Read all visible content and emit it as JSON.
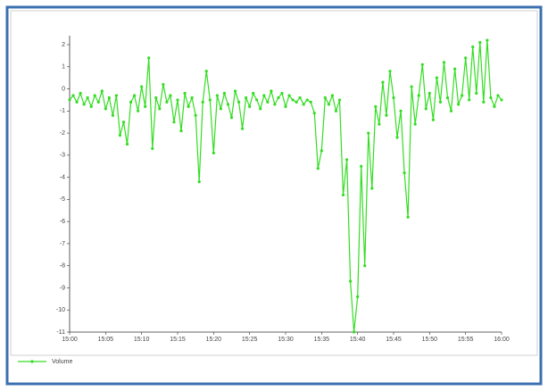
{
  "chart_data": {
    "type": "line",
    "x": [
      0,
      0.5,
      1,
      1.5,
      2,
      2.5,
      3,
      3.5,
      4,
      4.5,
      5,
      5.5,
      6,
      6.5,
      7,
      7.5,
      8,
      8.5,
      9,
      9.5,
      10,
      10.5,
      11,
      11.5,
      12,
      12.5,
      13,
      13.5,
      14,
      14.5,
      15,
      15.5,
      16,
      16.5,
      17,
      17.5,
      18,
      18.5,
      19,
      19.5,
      20,
      20.5,
      21,
      21.5,
      22,
      22.5,
      23,
      23.5,
      24,
      24.5,
      25,
      25.5,
      26,
      26.5,
      27,
      27.5,
      28,
      28.5,
      29,
      29.5,
      30,
      30.5,
      31,
      31.5,
      32,
      32.5,
      33,
      33.5,
      34,
      34.5,
      35,
      35.5,
      36,
      36.5,
      37,
      37.5,
      38,
      38.5,
      39,
      39.5,
      40,
      40.5,
      41,
      41.5,
      42,
      42.5,
      43,
      43.5,
      44,
      44.5,
      45,
      45.5,
      46,
      46.5,
      47,
      47.5,
      48,
      48.5,
      49,
      49.5,
      50,
      50.5,
      51,
      51.5,
      52,
      52.5,
      53,
      53.5,
      54,
      54.5,
      55,
      55.5,
      56,
      56.5,
      57,
      57.5,
      58,
      58.5,
      59,
      59.5,
      60
    ],
    "series": [
      {
        "name": "Volume",
        "color": "#33dd22",
        "values": [
          -0.5,
          -0.3,
          -0.6,
          -0.2,
          -0.7,
          -0.4,
          -0.8,
          -0.3,
          -0.6,
          -0.1,
          -0.9,
          -0.4,
          -1.2,
          -0.3,
          -2.1,
          -1.5,
          -2.5,
          -0.6,
          -0.3,
          -1.0,
          0.1,
          -0.8,
          1.4,
          -2.7,
          -0.4,
          -0.9,
          0.2,
          -0.6,
          -0.3,
          -1.5,
          -0.5,
          -1.9,
          -0.2,
          -0.8,
          -0.4,
          -1.2,
          -4.2,
          -0.6,
          0.8,
          -0.5,
          -2.9,
          -0.3,
          -0.9,
          -0.2,
          -0.7,
          -1.3,
          -0.1,
          -0.6,
          -1.8,
          -0.4,
          -0.8,
          -0.2,
          -0.5,
          -0.9,
          -0.3,
          -0.6,
          -0.1,
          -0.7,
          -0.4,
          -0.2,
          -0.8,
          -0.3,
          -0.5,
          -0.6,
          -0.4,
          -0.7,
          -0.5,
          -0.6,
          -1.1,
          -3.6,
          -2.8,
          -0.4,
          -0.7,
          -0.3,
          -1.0,
          -0.5,
          -4.8,
          -3.2,
          -8.7,
          -11.0,
          -9.4,
          -3.5,
          -8.0,
          -2.0,
          -4.5,
          -0.8,
          -1.6,
          0.3,
          -1.2,
          0.8,
          -0.4,
          -2.2,
          -1.0,
          -3.8,
          -5.8,
          0.1,
          -1.6,
          -0.3,
          1.1,
          -0.9,
          -0.2,
          -1.4,
          0.5,
          -0.6,
          1.2,
          -0.4,
          -1.0,
          0.9,
          -0.7,
          -0.3,
          1.4,
          -0.5,
          1.9,
          -0.2,
          2.1,
          -0.6,
          2.2,
          -0.4,
          -0.8,
          -0.3,
          -0.5
        ]
      }
    ],
    "xlim": [
      0,
      60
    ],
    "xticks": [
      {
        "value": 0,
        "label": "15:00"
      },
      {
        "value": 5,
        "label": "15:05"
      },
      {
        "value": 10,
        "label": "15:10"
      },
      {
        "value": 15,
        "label": "15:15"
      },
      {
        "value": 20,
        "label": "15:20"
      },
      {
        "value": 25,
        "label": "15:25"
      },
      {
        "value": 30,
        "label": "15:30"
      },
      {
        "value": 35,
        "label": "15:35"
      },
      {
        "value": 40,
        "label": "15:40"
      },
      {
        "value": 45,
        "label": "15:45"
      },
      {
        "value": 50,
        "label": "15:50"
      },
      {
        "value": 55,
        "label": "15:55"
      },
      {
        "value": 60,
        "label": "16:00"
      }
    ],
    "ylim": [
      -11,
      2
    ],
    "yticks": [
      -11,
      -10,
      -9,
      -8,
      -7,
      -6,
      -5,
      -4,
      -3,
      -2,
      -1,
      0,
      1,
      2
    ],
    "grid": false
  }
}
